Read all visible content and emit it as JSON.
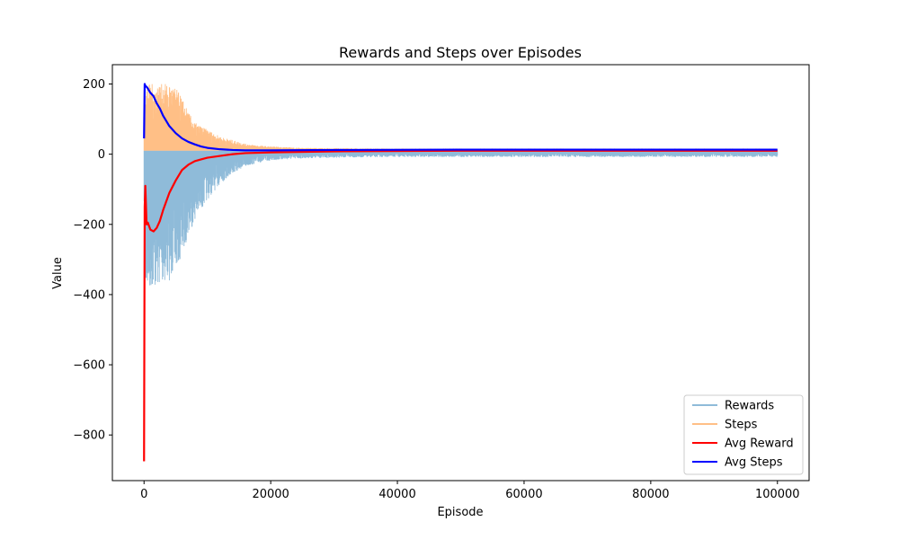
{
  "chart_data": {
    "type": "line",
    "title": "Rewards and Steps over Episodes",
    "xlabel": "Episode",
    "ylabel": "Value",
    "xlim": [
      -5000,
      105000
    ],
    "ylim": [
      -930,
      255
    ],
    "x_ticks": [
      0,
      20000,
      40000,
      60000,
      80000,
      100000
    ],
    "x_tick_labels": [
      "0",
      "20000",
      "40000",
      "60000",
      "80000",
      "100000"
    ],
    "y_ticks": [
      200,
      0,
      -200,
      -400,
      -600,
      -800
    ],
    "y_tick_labels": [
      "200",
      "0",
      "−200",
      "−400",
      "−600",
      "−800"
    ],
    "grid": false,
    "legend_position": "lower-right",
    "series": [
      {
        "name": "Rewards",
        "color": "#1f77b4",
        "opacity": 0.5,
        "style": "noisy-band",
        "x": [
          0,
          500,
          1000,
          2000,
          3000,
          4000,
          5000,
          6000,
          7000,
          8000,
          10000,
          12000,
          14000,
          16000,
          18000,
          20000,
          25000,
          30000,
          40000,
          60000,
          80000,
          100000
        ],
        "upper": [
          10,
          10,
          10,
          10,
          10,
          10,
          10,
          10,
          10,
          10,
          10,
          10,
          10,
          10,
          10,
          10,
          10,
          10,
          10,
          10,
          10,
          10
        ],
        "lower": [
          -400,
          -390,
          -385,
          -380,
          -370,
          -360,
          -330,
          -290,
          -230,
          -190,
          -130,
          -85,
          -55,
          -35,
          -25,
          -18,
          -12,
          -10,
          -8,
          -8,
          -8,
          -8
        ]
      },
      {
        "name": "Steps",
        "color": "#ff7f0e",
        "opacity": 0.5,
        "style": "noisy-band",
        "x": [
          0,
          500,
          1000,
          2000,
          3000,
          4000,
          5000,
          6000,
          7000,
          8000,
          10000,
          12000,
          14000,
          16000,
          18000,
          20000,
          25000,
          30000,
          40000,
          60000,
          80000,
          100000
        ],
        "upper": [
          200,
          200,
          200,
          200,
          200,
          200,
          190,
          160,
          120,
          90,
          70,
          50,
          40,
          30,
          25,
          22,
          18,
          17,
          16,
          16,
          16,
          16
        ],
        "lower": [
          10,
          10,
          10,
          10,
          10,
          10,
          10,
          10,
          10,
          10,
          10,
          10,
          10,
          10,
          10,
          10,
          10,
          10,
          10,
          10,
          10,
          10
        ]
      },
      {
        "name": "Avg Reward",
        "color": "#ff0000",
        "x": [
          0,
          100,
          200,
          400,
          600,
          800,
          1000,
          1500,
          2000,
          2500,
          3000,
          4000,
          5000,
          6000,
          7000,
          8000,
          9000,
          10000,
          12000,
          14000,
          16000,
          20000,
          30000,
          50000,
          100000
        ],
        "y": [
          -875,
          -150,
          -90,
          -200,
          -195,
          -205,
          -215,
          -220,
          -210,
          -190,
          -160,
          -110,
          -75,
          -45,
          -30,
          -20,
          -15,
          -10,
          -5,
          0,
          3,
          5,
          8,
          10,
          10
        ]
      },
      {
        "name": "Avg Steps",
        "color": "#0000ff",
        "x": [
          0,
          100,
          200,
          500,
          1000,
          1500,
          2000,
          2500,
          3000,
          4000,
          5000,
          6000,
          7000,
          8000,
          9000,
          10000,
          12000,
          14000,
          16000,
          20000,
          30000,
          50000,
          100000
        ],
        "y": [
          45,
          200,
          195,
          190,
          175,
          165,
          145,
          130,
          110,
          80,
          60,
          45,
          35,
          28,
          22,
          18,
          14,
          12,
          11,
          11,
          12,
          13,
          13
        ]
      }
    ]
  }
}
